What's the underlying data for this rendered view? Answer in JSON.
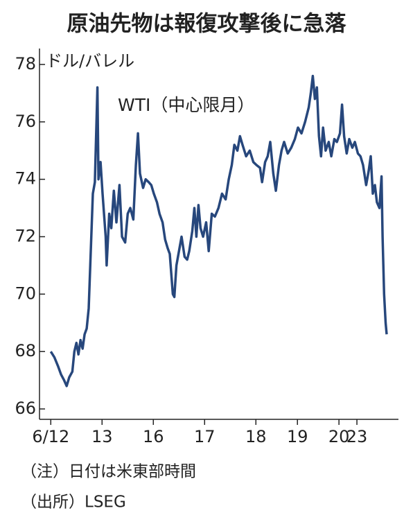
{
  "chart_data": {
    "type": "line",
    "title": "原油先物は報復攻撃後に急落",
    "y_label": "ドル/バレル",
    "annotation": "WTI（中心限月）",
    "notes": [
      "（注）日付は米東部時間",
      "（出所）LSEG"
    ],
    "xlim": [
      -0.22,
      6.78
    ],
    "xticks": [
      {
        "value": 0,
        "label": "6/12"
      },
      {
        "value": 1,
        "label": "13"
      },
      {
        "value": 2,
        "label": "16"
      },
      {
        "value": 3,
        "label": "17"
      },
      {
        "value": 4,
        "label": "18"
      },
      {
        "value": 4.81,
        "label": "19"
      },
      {
        "value": 5.62,
        "label": "20"
      },
      {
        "value": 5.97,
        "label": "23"
      }
    ],
    "ylim": [
      66,
      78
    ],
    "yticks": [
      66,
      68,
      70,
      72,
      74,
      76,
      78
    ],
    "grid": false,
    "series": [
      {
        "name": "WTI",
        "color": "#27477c",
        "x": [
          0,
          0.07,
          0.14,
          0.2,
          0.26,
          0.31,
          0.36,
          0.42,
          0.46,
          0.5,
          0.54,
          0.58,
          0.62,
          0.66,
          0.7,
          0.74,
          0.78,
          0.82,
          0.86,
          0.91,
          0.93,
          0.97,
          1.01,
          1.07,
          1.09,
          1.14,
          1.18,
          1.23,
          1.28,
          1.34,
          1.39,
          1.45,
          1.5,
          1.55,
          1.61,
          1.66,
          1.7,
          1.74,
          1.8,
          1.85,
          1.91,
          1.96,
          2.01,
          2.07,
          2.12,
          2.18,
          2.23,
          2.28,
          2.32,
          2.38,
          2.41,
          2.45,
          2.5,
          2.55,
          2.61,
          2.66,
          2.7,
          2.76,
          2.8,
          2.84,
          2.88,
          2.92,
          2.97,
          3.03,
          3.08,
          3.14,
          3.2,
          3.27,
          3.34,
          3.41,
          3.47,
          3.53,
          3.58,
          3.64,
          3.69,
          3.74,
          3.81,
          3.88,
          3.95,
          4.01,
          4.08,
          4.12,
          4.18,
          4.23,
          4.28,
          4.34,
          4.39,
          4.45,
          4.5,
          4.55,
          4.62,
          4.69,
          4.76,
          4.82,
          4.89,
          4.96,
          5.03,
          5.07,
          5.11,
          5.15,
          5.19,
          5.23,
          5.27,
          5.31,
          5.36,
          5.42,
          5.47,
          5.53,
          5.58,
          5.64,
          5.68,
          5.72,
          5.77,
          5.82,
          5.88,
          5.93,
          5.99,
          6.04,
          6.09,
          6.15,
          6.2,
          6.24,
          6.28,
          6.32,
          6.36,
          6.41,
          6.45,
          6.47,
          6.5,
          6.53,
          6.55
        ],
        "values": [
          68.0,
          67.8,
          67.5,
          67.2,
          67.0,
          66.8,
          67.1,
          67.3,
          68.0,
          68.3,
          67.9,
          68.4,
          68.1,
          68.6,
          68.8,
          69.5,
          71.5,
          73.5,
          73.9,
          77.2,
          74.0,
          74.6,
          73.5,
          72.0,
          71.0,
          72.8,
          72.3,
          73.6,
          72.5,
          73.8,
          72.0,
          71.8,
          72.8,
          73.0,
          72.6,
          74.5,
          75.6,
          74.2,
          73.7,
          74.0,
          73.9,
          73.8,
          73.5,
          73.2,
          72.8,
          72.5,
          71.9,
          71.6,
          71.4,
          70.0,
          69.9,
          71.0,
          71.5,
          72.0,
          71.3,
          71.2,
          71.5,
          72.2,
          73.0,
          72.0,
          73.1,
          72.3,
          72.0,
          72.5,
          71.5,
          72.8,
          72.7,
          73.0,
          73.5,
          73.3,
          74.0,
          74.5,
          75.2,
          75.0,
          75.5,
          75.2,
          74.8,
          75.0,
          74.6,
          74.5,
          74.4,
          73.9,
          74.6,
          74.8,
          75.3,
          74.2,
          73.6,
          74.5,
          75.0,
          75.3,
          74.9,
          75.1,
          75.4,
          75.8,
          75.6,
          76.0,
          76.5,
          77.0,
          77.6,
          76.8,
          77.2,
          75.5,
          74.8,
          75.8,
          75.0,
          75.3,
          74.8,
          75.4,
          75.3,
          75.6,
          76.6,
          75.5,
          74.9,
          75.4,
          75.1,
          75.3,
          74.9,
          74.8,
          74.5,
          73.8,
          74.3,
          74.8,
          73.5,
          73.8,
          73.2,
          73.0,
          74.1,
          72.0,
          70.0,
          69.0,
          68.6
        ]
      }
    ]
  }
}
